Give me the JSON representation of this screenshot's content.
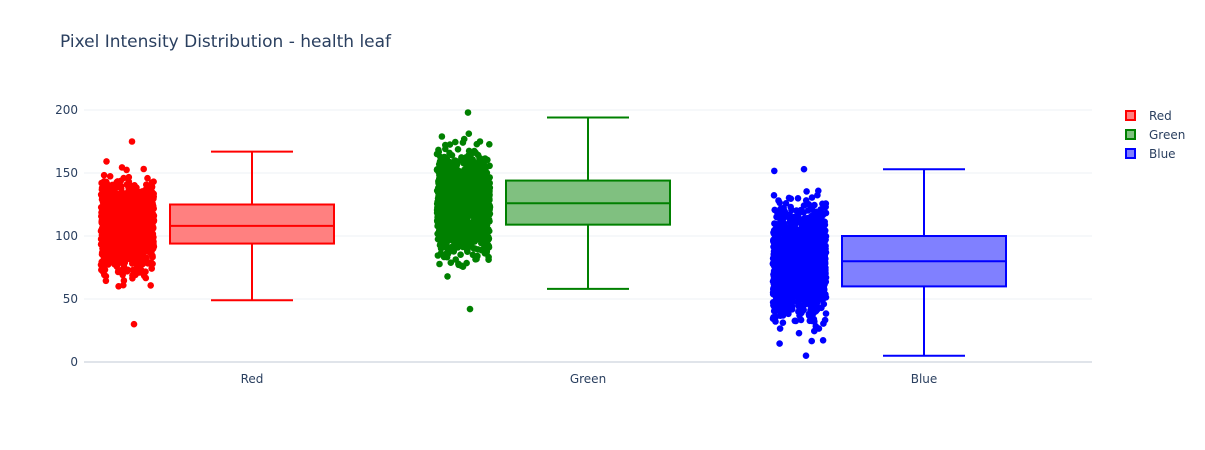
{
  "chart_data": {
    "type": "box",
    "title": "Pixel Intensity Distribution - health leaf",
    "xlabel": "",
    "ylabel": "",
    "categories": [
      "Red",
      "Green",
      "Blue"
    ],
    "ylim": [
      0,
      205
    ],
    "y_ticks": [
      0,
      50,
      100,
      150,
      200
    ],
    "grid": true,
    "legend_position": "top-right",
    "points_shown": "all",
    "series": [
      {
        "name": "Red",
        "color": "#ff0000",
        "fill": "#ff8080",
        "min": 49,
        "q1": 94,
        "median": 108,
        "q3": 125,
        "max": 167,
        "points_min": 30,
        "points_max": 175
      },
      {
        "name": "Green",
        "color": "#008000",
        "fill": "#80c080",
        "min": 58,
        "q1": 109,
        "median": 126,
        "q3": 144,
        "max": 194,
        "points_min": 42,
        "points_max": 198
      },
      {
        "name": "Blue",
        "color": "#0000ff",
        "fill": "#8080ff",
        "min": 5,
        "q1": 60,
        "median": 80,
        "q3": 100,
        "max": 153,
        "points_min": 5,
        "points_max": 153
      }
    ]
  }
}
